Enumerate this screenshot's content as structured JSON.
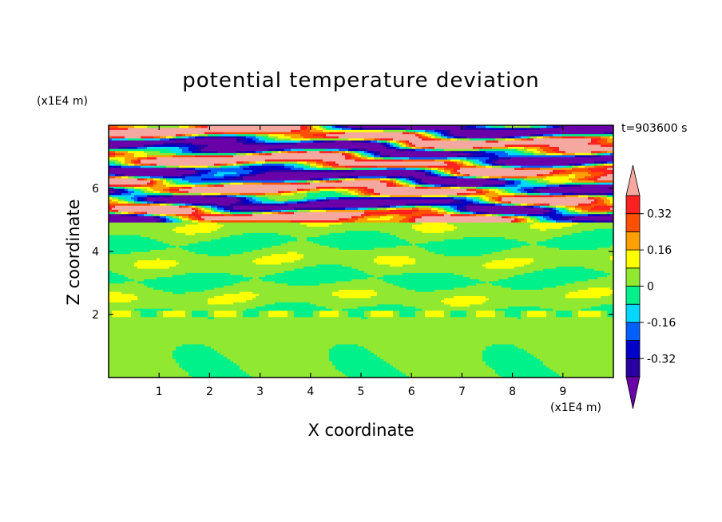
{
  "chart_data": {
    "type": "heatmap",
    "title": "potential temperature deviation",
    "xlabel": "X coordinate",
    "ylabel": "Z coordinate",
    "x_unit": "(x1E4 m)",
    "y_unit": "(x1E4 m)",
    "time_label": "t=903600 s",
    "xlim": [
      0,
      10
    ],
    "ylim": [
      0,
      8
    ],
    "x_ticks": [
      "1",
      "2",
      "3",
      "4",
      "5",
      "6",
      "7",
      "8",
      "9"
    ],
    "y_ticks": [
      "2",
      "4",
      "6"
    ],
    "colorbar": {
      "levels": [
        -0.4,
        -0.32,
        -0.24,
        -0.16,
        -0.08,
        0,
        0.08,
        0.16,
        0.24,
        0.32,
        0.4
      ],
      "labels": [
        "0.32",
        "0.16",
        "0",
        "-0.16",
        "-0.32"
      ],
      "colors": [
        "#6a00a8",
        "#2a00a0",
        "#0000c8",
        "#0060ff",
        "#00d8ff",
        "#00f08a",
        "#90e830",
        "#ffff00",
        "#ffa000",
        "#ff5000",
        "#ff2020",
        "#f4a8a0"
      ],
      "extend": "both"
    }
  }
}
